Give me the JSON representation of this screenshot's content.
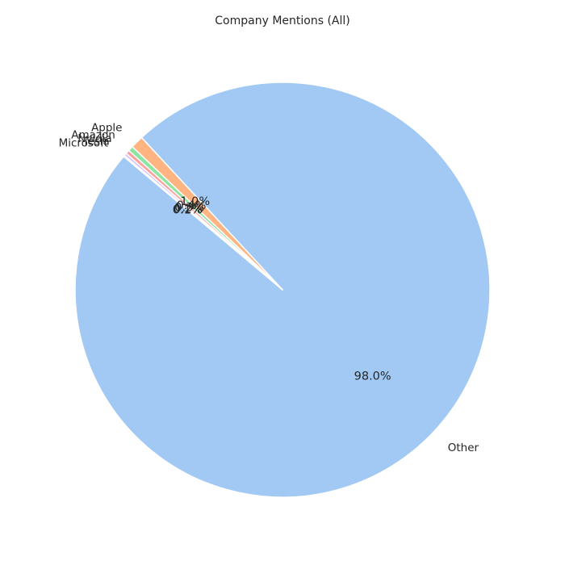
{
  "chart_data": {
    "type": "pie",
    "title": "Company Mentions (All)",
    "slices": [
      {
        "label": "Other",
        "value": 98.0,
        "pct_label": "98.0%",
        "color": "#a1c9f4"
      },
      {
        "label": "Apple",
        "value": 1.0,
        "pct_label": "1.0%",
        "color": "#ffb482"
      },
      {
        "label": "Amazon",
        "value": 0.4,
        "pct_label": "0.4%",
        "color": "#8de5a1"
      },
      {
        "label": "Nvidia",
        "value": 0.3,
        "pct_label": "0.3%",
        "color": "#ff9f9b"
      },
      {
        "label": "Tesla",
        "value": 0.2,
        "pct_label": "0.2%",
        "color": "#d0bbff"
      },
      {
        "label": "Microsoft",
        "value": 0.1,
        "pct_label": "0.1%",
        "color": "#debb9b"
      }
    ],
    "start_angle_deg": 140,
    "direction": "counterclockwise",
    "legend": "none"
  }
}
